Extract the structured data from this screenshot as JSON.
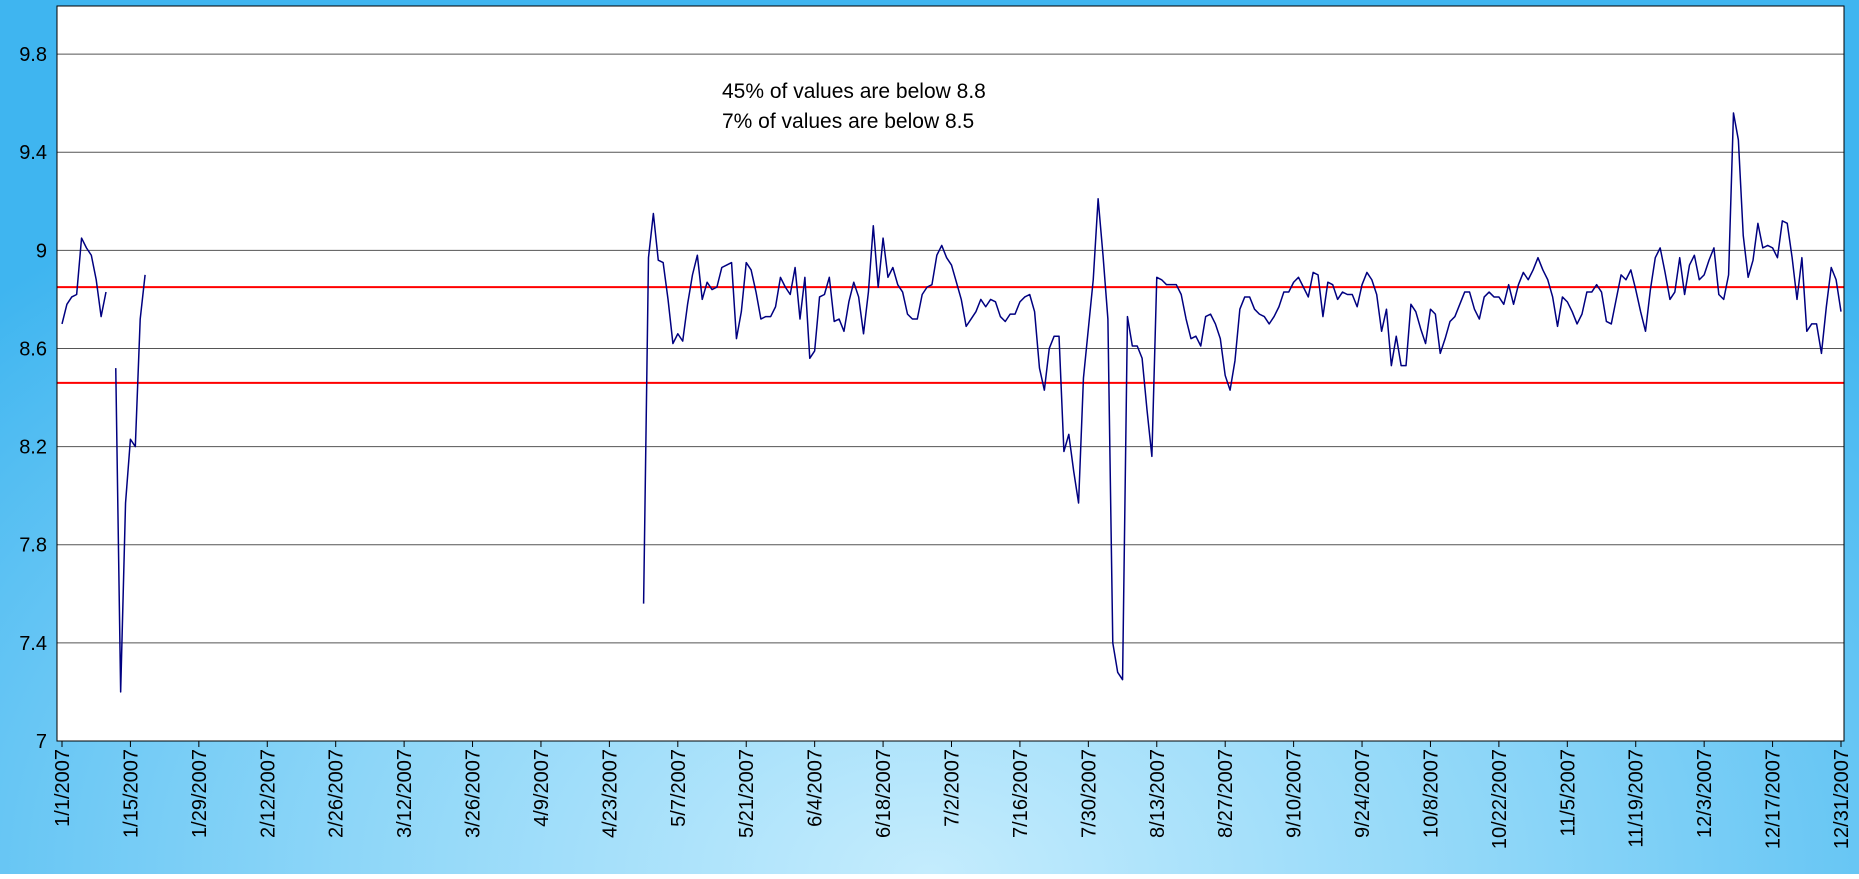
{
  "chart_data": {
    "type": "line",
    "color": "#000080",
    "annotations": [
      "45% of values are below 8.8",
      "7% of values are below 8.5"
    ],
    "reference_lines": [
      {
        "value": 8.85,
        "color": "#ff0000"
      },
      {
        "value": 8.46,
        "color": "#ff0000"
      }
    ],
    "ylim": [
      7,
      10
    ],
    "yticks": [
      7,
      7.4,
      7.8,
      8.2,
      8.6,
      9,
      9.4,
      9.8
    ],
    "grid": true,
    "xlim": [
      "1/1/2007",
      "12/31/2007"
    ],
    "xticks": [
      "1/1/2007",
      "1/15/2007",
      "1/29/2007",
      "2/12/2007",
      "2/26/2007",
      "3/12/2007",
      "3/26/2007",
      "4/9/2007",
      "4/23/2007",
      "5/7/2007",
      "5/21/2007",
      "6/4/2007",
      "6/18/2007",
      "7/2/2007",
      "7/16/2007",
      "7/30/2007",
      "8/13/2007",
      "8/27/2007",
      "9/10/2007",
      "9/24/2007",
      "10/8/2007",
      "10/22/2007",
      "11/5/2007",
      "11/19/2007",
      "12/3/2007",
      "12/17/2007",
      "12/31/2007"
    ],
    "x": [
      "1/1/2007",
      "1/2/2007",
      "1/3/2007",
      "1/4/2007",
      "1/5/2007",
      "1/6/2007",
      "1/7/2007",
      "1/8/2007",
      "1/9/2007",
      "1/10/2007",
      "1/11/2007",
      "1/12/2007",
      "1/13/2007",
      "1/14/2007",
      "1/15/2007",
      "1/16/2007",
      "1/17/2007",
      "1/18/2007",
      "1/19/2007",
      "4/30/2007",
      "5/1/2007",
      "5/2/2007",
      "5/3/2007",
      "5/4/2007",
      "5/5/2007",
      "5/6/2007",
      "5/7/2007",
      "5/8/2007",
      "5/9/2007",
      "5/10/2007",
      "5/11/2007",
      "5/12/2007",
      "5/13/2007",
      "5/14/2007",
      "5/15/2007",
      "5/16/2007",
      "5/17/2007",
      "5/18/2007",
      "5/19/2007",
      "5/20/2007",
      "5/21/2007",
      "5/22/2007",
      "5/23/2007",
      "5/24/2007",
      "5/25/2007",
      "5/26/2007",
      "5/27/2007",
      "5/28/2007",
      "5/29/2007",
      "5/30/2007",
      "5/31/2007",
      "6/1/2007",
      "6/2/2007",
      "6/3/2007",
      "6/4/2007",
      "6/5/2007",
      "6/6/2007",
      "6/7/2007",
      "6/8/2007",
      "6/9/2007",
      "6/10/2007",
      "6/11/2007",
      "6/12/2007",
      "6/13/2007",
      "6/14/2007",
      "6/15/2007",
      "6/16/2007",
      "6/17/2007",
      "6/18/2007",
      "6/19/2007",
      "6/20/2007",
      "6/21/2007",
      "6/22/2007",
      "6/23/2007",
      "6/24/2007",
      "6/25/2007",
      "6/26/2007",
      "6/27/2007",
      "6/28/2007",
      "6/29/2007",
      "6/30/2007",
      "7/1/2007",
      "7/2/2007",
      "7/3/2007",
      "7/4/2007",
      "7/5/2007",
      "7/6/2007",
      "7/7/2007",
      "7/8/2007",
      "7/9/2007",
      "7/10/2007",
      "7/11/2007",
      "7/12/2007",
      "7/13/2007",
      "7/14/2007",
      "7/15/2007",
      "7/16/2007",
      "7/17/2007",
      "7/18/2007",
      "7/19/2007",
      "7/20/2007",
      "7/21/2007",
      "7/22/2007",
      "7/23/2007",
      "7/24/2007",
      "7/25/2007",
      "7/26/2007",
      "7/27/2007",
      "7/28/2007",
      "7/29/2007",
      "7/30/2007",
      "7/31/2007",
      "8/1/2007",
      "8/2/2007",
      "8/3/2007",
      "8/4/2007",
      "8/5/2007",
      "8/6/2007",
      "8/7/2007",
      "8/8/2007",
      "8/9/2007",
      "8/10/2007",
      "8/11/2007",
      "8/12/2007",
      "8/13/2007",
      "8/14/2007",
      "8/15/2007",
      "8/16/2007",
      "8/17/2007",
      "8/18/2007",
      "8/19/2007",
      "8/20/2007",
      "8/21/2007",
      "8/22/2007",
      "8/23/2007",
      "8/24/2007",
      "8/25/2007",
      "8/26/2007",
      "8/27/2007",
      "8/28/2007",
      "8/29/2007",
      "8/30/2007",
      "8/31/2007",
      "9/1/2007",
      "9/2/2007",
      "9/3/2007",
      "9/4/2007",
      "9/5/2007",
      "9/6/2007",
      "9/7/2007",
      "9/8/2007",
      "9/9/2007",
      "9/10/2007",
      "9/11/2007",
      "9/12/2007",
      "9/13/2007",
      "9/14/2007",
      "9/15/2007",
      "9/16/2007",
      "9/17/2007",
      "9/18/2007",
      "9/19/2007",
      "9/20/2007",
      "9/21/2007",
      "9/22/2007",
      "9/23/2007",
      "9/24/2007",
      "9/25/2007",
      "9/26/2007",
      "9/27/2007",
      "9/28/2007",
      "9/29/2007",
      "9/30/2007",
      "10/1/2007",
      "10/2/2007",
      "10/3/2007",
      "10/4/2007",
      "10/5/2007",
      "10/6/2007",
      "10/7/2007",
      "10/8/2007",
      "10/9/2007",
      "10/10/2007",
      "10/11/2007",
      "10/12/2007",
      "10/13/2007",
      "10/14/2007",
      "10/15/2007",
      "10/16/2007",
      "10/17/2007",
      "10/18/2007",
      "10/19/2007",
      "10/20/2007",
      "10/21/2007",
      "10/22/2007",
      "10/23/2007",
      "10/24/2007",
      "10/25/2007",
      "10/26/2007",
      "10/27/2007",
      "10/28/2007",
      "10/29/2007",
      "10/30/2007",
      "10/31/2007",
      "11/1/2007",
      "11/2/2007",
      "11/3/2007",
      "11/4/2007",
      "11/5/2007",
      "11/6/2007",
      "11/7/2007",
      "11/8/2007",
      "11/9/2007",
      "11/10/2007",
      "11/11/2007",
      "11/12/2007",
      "11/13/2007",
      "11/14/2007",
      "11/15/2007",
      "11/16/2007",
      "11/17/2007",
      "11/18/2007",
      "11/19/2007",
      "11/20/2007",
      "11/21/2007",
      "11/22/2007",
      "11/23/2007",
      "11/24/2007",
      "11/25/2007",
      "11/26/2007",
      "11/27/2007",
      "11/28/2007",
      "11/29/2007",
      "11/30/2007",
      "12/1/2007",
      "12/2/2007",
      "12/3/2007",
      "12/4/2007",
      "12/5/2007",
      "12/6/2007",
      "12/7/2007",
      "12/8/2007",
      "12/9/2007",
      "12/10/2007",
      "12/11/2007",
      "12/12/2007",
      "12/13/2007",
      "12/14/2007",
      "12/15/2007",
      "12/16/2007",
      "12/17/2007",
      "12/18/2007",
      "12/19/2007",
      "12/20/2007",
      "12/21/2007",
      "12/22/2007",
      "12/23/2007",
      "12/24/2007",
      "12/25/2007",
      "12/26/2007",
      "12/27/2007",
      "12/28/2007",
      "12/29/2007",
      "12/30/2007",
      "12/31/2007"
    ],
    "values": [
      8.7,
      8.78,
      8.81,
      8.82,
      9.05,
      9.01,
      8.98,
      8.88,
      8.73,
      8.83,
      null,
      8.52,
      7.2,
      7.97,
      8.23,
      8.2,
      8.72,
      8.9,
      null,
      7.56,
      8.97,
      9.15,
      8.96,
      8.95,
      8.8,
      8.62,
      8.66,
      8.63,
      8.78,
      8.9,
      8.98,
      8.8,
      8.87,
      8.84,
      8.85,
      8.93,
      8.94,
      8.95,
      8.64,
      8.75,
      8.95,
      8.92,
      8.83,
      8.72,
      8.73,
      8.73,
      8.77,
      8.89,
      8.85,
      8.82,
      8.93,
      8.72,
      8.89,
      8.56,
      8.59,
      8.81,
      8.82,
      8.89,
      8.71,
      8.72,
      8.67,
      8.79,
      8.87,
      8.81,
      8.66,
      8.83,
      9.1,
      8.85,
      9.05,
      8.89,
      8.93,
      8.86,
      8.83,
      8.74,
      8.72,
      8.72,
      8.82,
      8.85,
      8.86,
      8.98,
      9.02,
      8.97,
      8.94,
      8.87,
      8.8,
      8.69,
      8.72,
      8.75,
      8.8,
      8.77,
      8.8,
      8.79,
      8.73,
      8.71,
      8.74,
      8.74,
      8.79,
      8.81,
      8.82,
      8.75,
      8.52,
      8.43,
      8.6,
      8.65,
      8.65,
      8.18,
      8.25,
      8.1,
      7.97,
      8.48,
      8.68,
      8.88,
      9.21,
      8.98,
      8.72,
      7.4,
      7.28,
      7.25,
      8.73,
      8.61,
      8.61,
      8.56,
      8.35,
      8.16,
      8.89,
      8.88,
      8.86,
      8.86,
      8.86,
      8.82,
      8.72,
      8.64,
      8.65,
      8.61,
      8.73,
      8.74,
      8.7,
      8.64,
      8.49,
      8.43,
      8.55,
      8.76,
      8.81,
      8.81,
      8.76,
      8.74,
      8.73,
      8.7,
      8.73,
      8.77,
      8.83,
      8.83,
      8.87,
      8.89,
      8.85,
      8.81,
      8.91,
      8.9,
      8.73,
      8.87,
      8.86,
      8.8,
      8.83,
      8.82,
      8.82,
      8.77,
      8.86,
      8.91,
      8.88,
      8.82,
      8.67,
      8.76,
      8.53,
      8.65,
      8.53,
      8.53,
      8.78,
      8.75,
      8.68,
      8.62,
      8.76,
      8.74,
      8.58,
      8.64,
      8.71,
      8.73,
      8.78,
      8.83,
      8.83,
      8.76,
      8.72,
      8.81,
      8.83,
      8.81,
      8.81,
      8.78,
      8.86,
      8.78,
      8.86,
      8.91,
      8.88,
      8.92,
      8.97,
      8.92,
      8.88,
      8.81,
      8.69,
      8.81,
      8.79,
      8.75,
      8.7,
      8.74,
      8.83,
      8.83,
      8.86,
      8.83,
      8.71,
      8.7,
      8.8,
      8.9,
      8.88,
      8.92,
      8.84,
      8.75,
      8.67,
      8.84,
      8.97,
      9.01,
      8.91,
      8.8,
      8.83,
      8.97,
      8.82,
      8.94,
      8.98,
      8.88,
      8.9,
      8.96,
      9.01,
      8.82,
      8.8,
      8.9,
      9.56,
      9.45,
      9.06,
      8.89,
      8.96,
      9.11,
      9.01,
      9.02,
      9.01,
      8.97,
      9.12,
      9.11,
      8.97,
      8.8,
      8.97,
      8.67,
      8.7,
      8.7,
      8.58,
      8.77,
      8.93,
      8.88,
      8.75
    ]
  }
}
